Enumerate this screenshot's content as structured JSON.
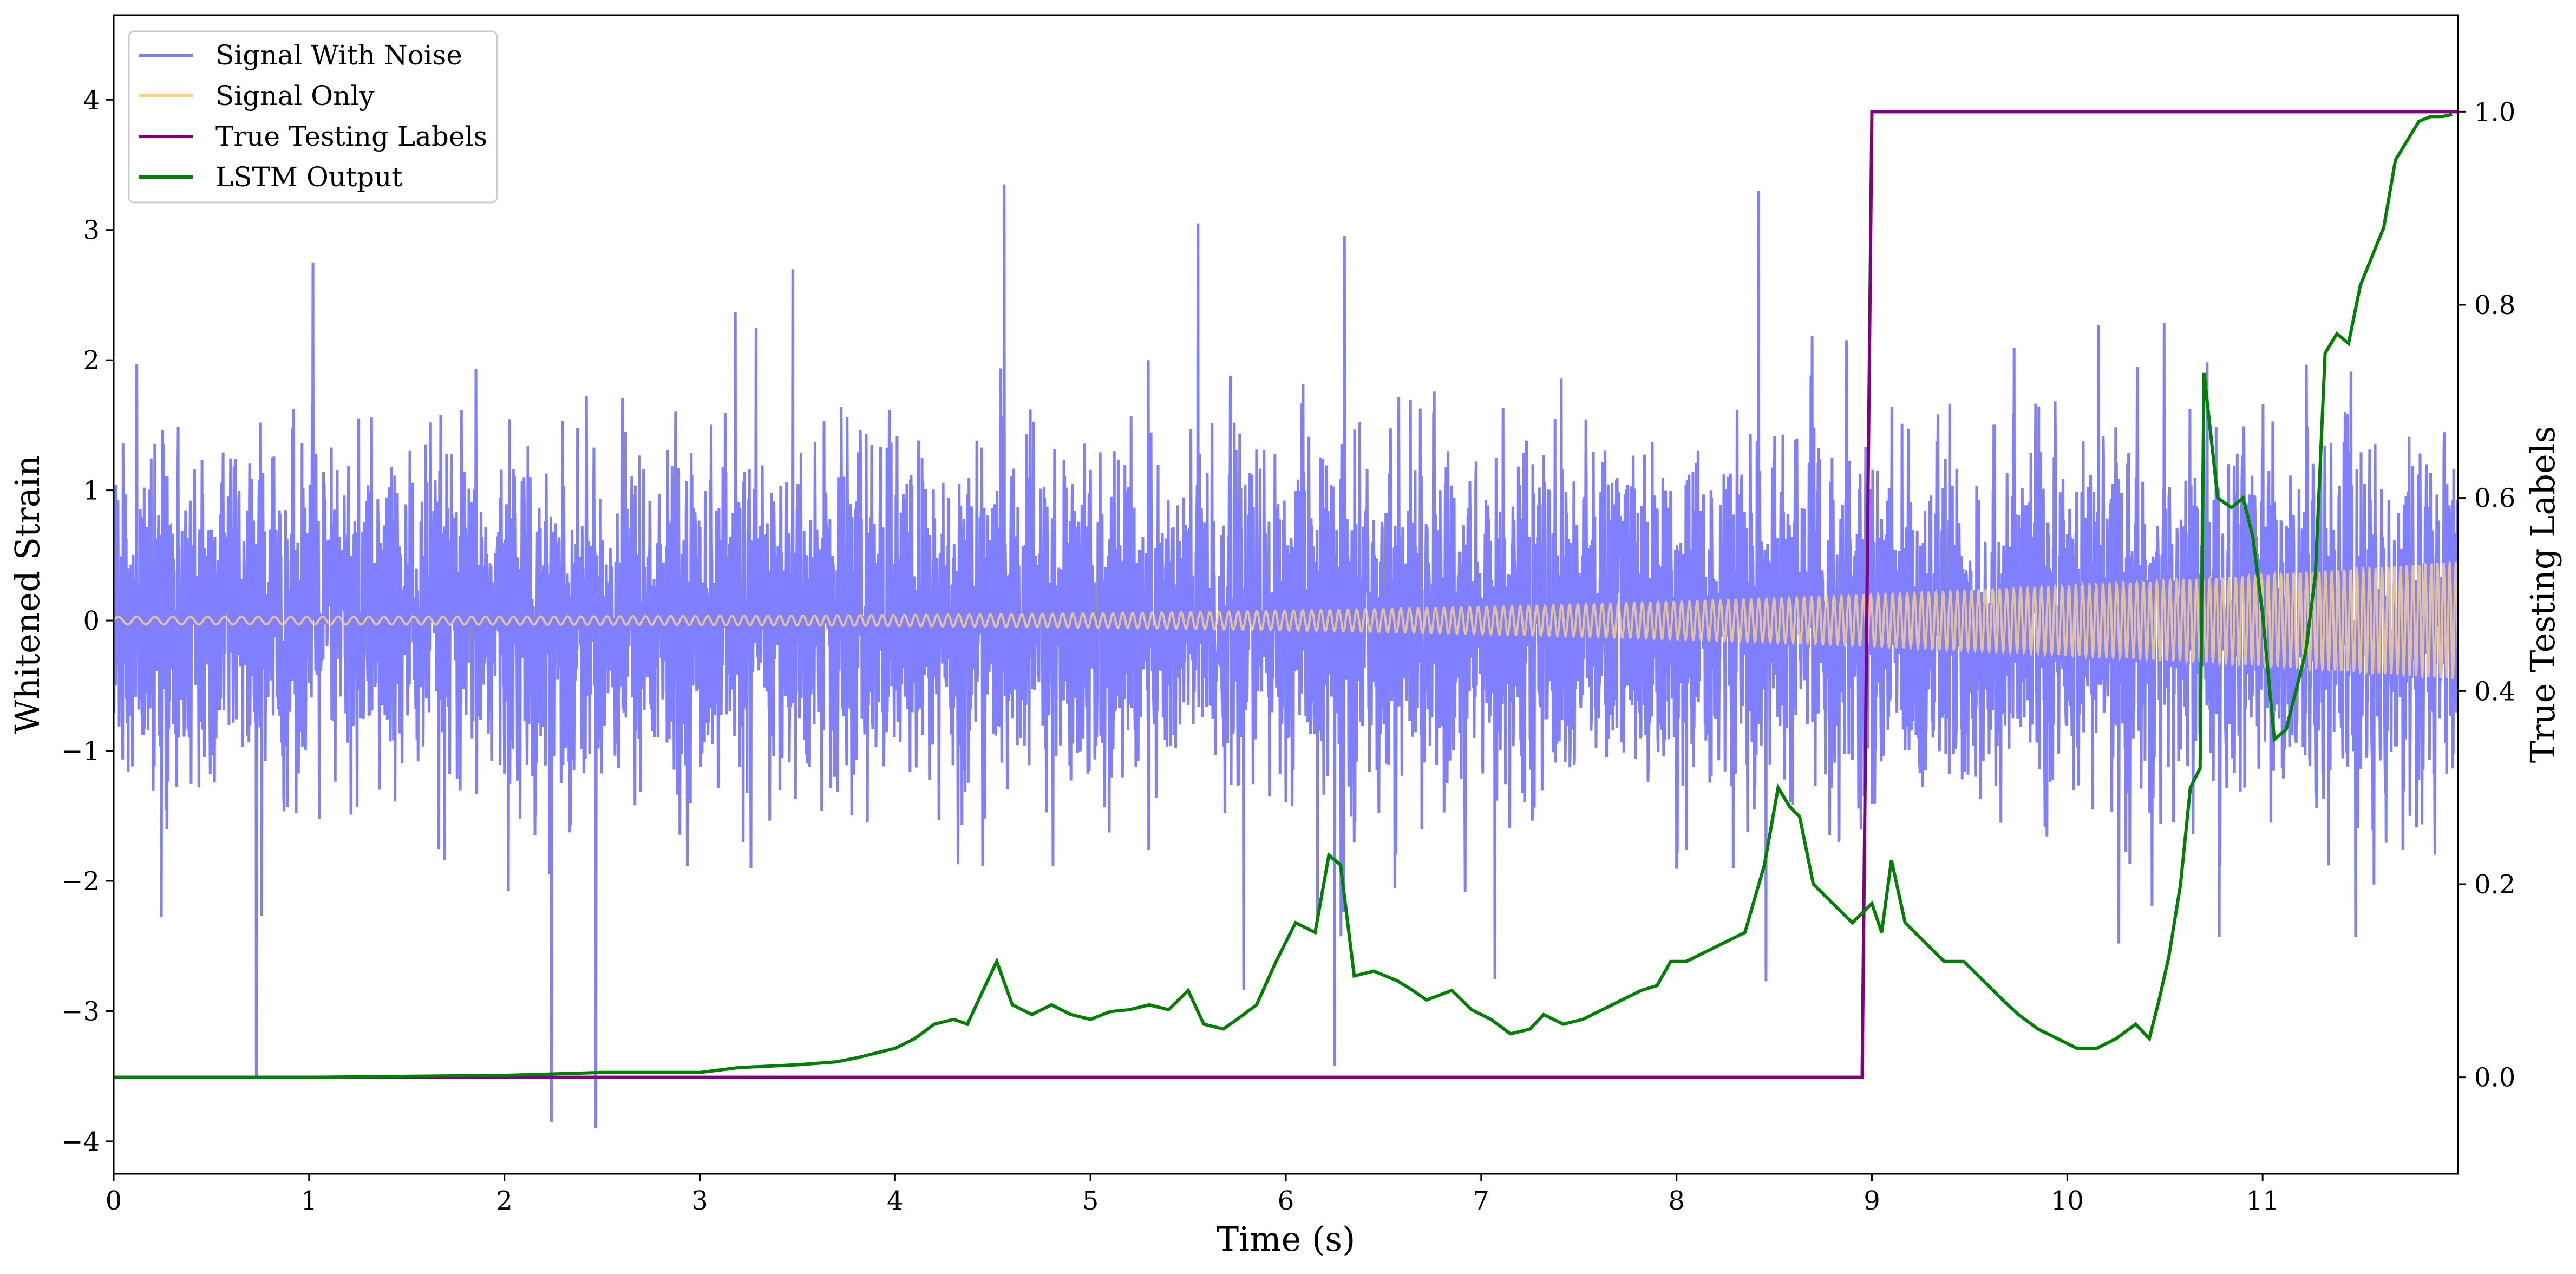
{
  "chart_data": {
    "type": "line",
    "xlabel": "Time (s)",
    "ylabel": "Whitened Strain",
    "y2label": "True Testing Labels",
    "xlim": [
      0,
      12
    ],
    "ylim": [
      -4.25,
      4.65
    ],
    "y2lim": [
      -0.1,
      1.1
    ],
    "x_ticks": [
      0,
      1,
      2,
      3,
      4,
      5,
      6,
      7,
      8,
      9,
      10,
      11
    ],
    "y_ticks": [
      -4,
      -3,
      -2,
      -1,
      0,
      1,
      2,
      3,
      4
    ],
    "y_tick_labels": [
      "−4",
      "−3",
      "−2",
      "−1",
      "0",
      "1",
      "2",
      "3",
      "4"
    ],
    "y2_ticks": [
      0.0,
      0.2,
      0.4,
      0.6,
      0.8,
      1.0
    ],
    "y2_tick_labels": [
      "0.0",
      "0.2",
      "0.4",
      "0.6",
      "0.8",
      "1.0"
    ],
    "grid": false,
    "legend_position": "top-left",
    "series": [
      {
        "name": "Signal With Noise",
        "axis": "left",
        "color": "#7f7fff",
        "description_x_range": [
          0,
          12
        ],
        "typical_amplitude": 1.3,
        "peak_values": [
          {
            "x": 0.73,
            "y": -3.5
          },
          {
            "x": 1.02,
            "y": 2.75
          },
          {
            "x": 2.24,
            "y": -3.85
          },
          {
            "x": 5.55,
            "y": 3.05
          },
          {
            "x": 8.42,
            "y": 3.3
          },
          {
            "x": 6.25,
            "y": -3.42
          }
        ]
      },
      {
        "name": "Signal Only",
        "axis": "left",
        "color": "#ffd280",
        "chirp_start_amplitude": 0.03,
        "chirp_end_amplitude": 0.45,
        "x_range": [
          0,
          12
        ]
      },
      {
        "name": "True Testing Labels",
        "axis": "right",
        "color": "#800080",
        "x": [
          0,
          8.95,
          9.0,
          12.0
        ],
        "y": [
          0.0,
          0.0,
          1.0,
          1.0
        ]
      },
      {
        "name": "LSTM Output",
        "axis": "right",
        "color": "#008000",
        "x": [
          0,
          1.0,
          2.0,
          2.5,
          3.0,
          3.2,
          3.5,
          3.7,
          3.8,
          4.0,
          4.1,
          4.2,
          4.3,
          4.37,
          4.45,
          4.52,
          4.6,
          4.7,
          4.8,
          4.9,
          5.0,
          5.1,
          5.2,
          5.3,
          5.4,
          5.5,
          5.58,
          5.68,
          5.75,
          5.85,
          5.95,
          6.05,
          6.15,
          6.22,
          6.28,
          6.35,
          6.45,
          6.57,
          6.65,
          6.72,
          6.85,
          6.95,
          7.05,
          7.15,
          7.25,
          7.32,
          7.42,
          7.52,
          7.62,
          7.72,
          7.82,
          7.9,
          7.97,
          8.05,
          8.15,
          8.25,
          8.35,
          8.45,
          8.52,
          8.58,
          8.63,
          8.7,
          8.8,
          8.9,
          9.0,
          9.05,
          9.1,
          9.17,
          9.27,
          9.37,
          9.47,
          9.57,
          9.67,
          9.75,
          9.85,
          9.95,
          10.05,
          10.15,
          10.25,
          10.35,
          10.42,
          10.47,
          10.52,
          10.58,
          10.63,
          10.68,
          10.7,
          10.77,
          10.84,
          10.9,
          10.95,
          11.0,
          11.06,
          11.12,
          11.17,
          11.22,
          11.27,
          11.32,
          11.38,
          11.44,
          11.5,
          11.56,
          11.62,
          11.68,
          11.74,
          11.8,
          11.86,
          11.92,
          11.97
        ],
        "y": [
          0.0,
          0.0,
          0.002,
          0.005,
          0.005,
          0.01,
          0.013,
          0.016,
          0.02,
          0.03,
          0.04,
          0.055,
          0.06,
          0.055,
          0.09,
          0.12,
          0.075,
          0.065,
          0.075,
          0.065,
          0.06,
          0.068,
          0.07,
          0.075,
          0.07,
          0.09,
          0.055,
          0.05,
          0.06,
          0.075,
          0.12,
          0.16,
          0.15,
          0.23,
          0.22,
          0.105,
          0.11,
          0.1,
          0.09,
          0.08,
          0.09,
          0.07,
          0.06,
          0.045,
          0.05,
          0.065,
          0.055,
          0.06,
          0.07,
          0.08,
          0.09,
          0.095,
          0.12,
          0.12,
          0.13,
          0.14,
          0.15,
          0.22,
          0.3,
          0.28,
          0.27,
          0.2,
          0.18,
          0.16,
          0.18,
          0.15,
          0.225,
          0.16,
          0.14,
          0.12,
          0.12,
          0.1,
          0.08,
          0.065,
          0.05,
          0.04,
          0.03,
          0.03,
          0.04,
          0.055,
          0.04,
          0.08,
          0.125,
          0.2,
          0.3,
          0.32,
          0.73,
          0.6,
          0.59,
          0.6,
          0.56,
          0.48,
          0.35,
          0.36,
          0.4,
          0.44,
          0.52,
          0.75,
          0.77,
          0.76,
          0.82,
          0.85,
          0.88,
          0.95,
          0.97,
          0.99,
          0.995,
          0.995,
          0.997
        ]
      }
    ]
  }
}
